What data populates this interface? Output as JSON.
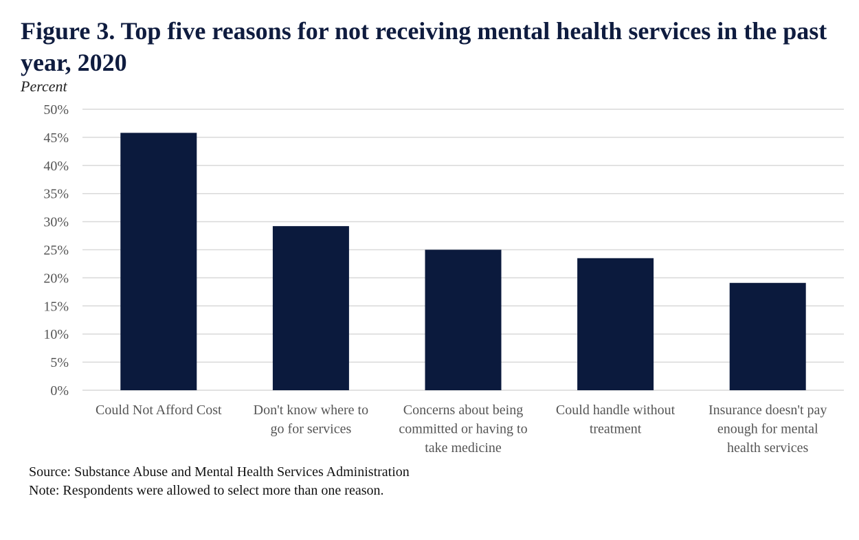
{
  "chart_data": {
    "type": "bar",
    "title": "Figure 3. Top five reasons for not receiving mental health services in the past year, 2020",
    "ylabel": "Percent",
    "xlabel": "",
    "categories": [
      [
        "Could Not Afford Cost"
      ],
      [
        "Don't know where to",
        "go for services"
      ],
      [
        "Concerns about being",
        "committed or having to",
        "take medicine"
      ],
      [
        "Could handle without",
        "treatment"
      ],
      [
        "Insurance doesn't pay",
        "enough for mental",
        "health services"
      ]
    ],
    "values": [
      45.8,
      29.2,
      25.0,
      23.5,
      19.1
    ],
    "ylim": [
      0,
      50
    ],
    "yticks": [
      0,
      5,
      10,
      15,
      20,
      25,
      30,
      35,
      40,
      45,
      50
    ],
    "ytick_labels": [
      "0%",
      "5%",
      "10%",
      "15%",
      "20%",
      "25%",
      "30%",
      "35%",
      "40%",
      "45%",
      "50%"
    ],
    "grid": true,
    "bar_color": "#0b1a3d",
    "grid_color": "#d9d9d9"
  },
  "footer": {
    "source": "Source: Substance Abuse and Mental Health Services Administration",
    "note": "Note: Respondents were allowed to select more than one reason."
  }
}
